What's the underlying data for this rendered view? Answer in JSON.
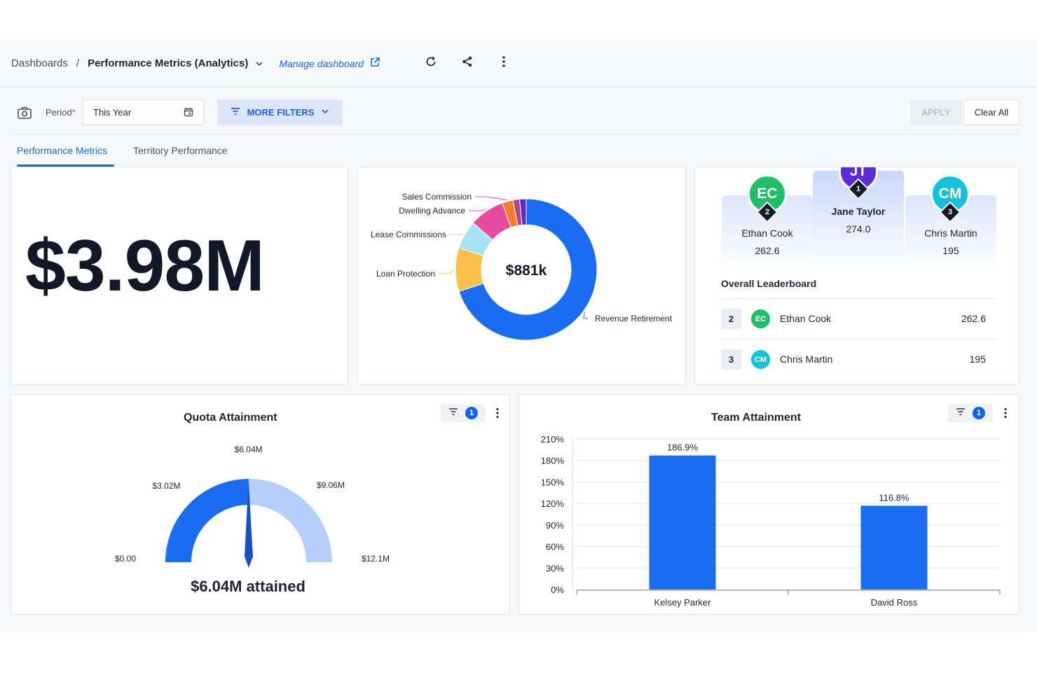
{
  "header": {
    "breadcrumb_root": "Dashboards",
    "breadcrumb_separator": "/",
    "breadcrumb_current": "Performance Metrics (Analytics)",
    "manage_label": "Manage dashboard",
    "icons": [
      "chevron-down-icon",
      "external-link-icon",
      "refresh-icon",
      "share-icon",
      "more-vertical-icon"
    ]
  },
  "filters": {
    "period_label": "Period",
    "required_mark": "*",
    "period_value": "This Year",
    "more_filters_label": "MORE FILTERS",
    "apply_label": "APPLY",
    "clear_label": "Clear All"
  },
  "tabs": [
    {
      "label": "Performance Metrics",
      "active": true
    },
    {
      "label": "Territory Performance",
      "active": false
    }
  ],
  "kpi": {
    "value": "$3.98M"
  },
  "donut": {
    "center_label": "$881k",
    "colors": {
      "revenue": "#1a6cf0",
      "loan": "#f9c04a",
      "lease": "#a6e3f5",
      "sales": "#e84ba0"
    }
  },
  "leaderboard": {
    "podium": [
      {
        "rank": "2",
        "initials": "EC",
        "name": "Ethan Cook",
        "score": "262.6",
        "color": "#1fbf6a"
      },
      {
        "rank": "1",
        "initials": "JT",
        "name": "Jane Taylor",
        "score": "274.0",
        "color": "#5b2bd6"
      },
      {
        "rank": "3",
        "initials": "CM",
        "name": "Chris Martin",
        "score": "195",
        "color": "#12c3d8"
      }
    ],
    "title": "Overall Leaderboard",
    "rows": [
      {
        "rank": "2",
        "initials": "EC",
        "name": "Ethan Cook",
        "score": "262.6",
        "color": "#1fbf6a"
      },
      {
        "rank": "3",
        "initials": "CM",
        "name": "Chris Martin",
        "score": "195",
        "color": "#12c3d8"
      }
    ]
  },
  "quota": {
    "title": "Quota Attainment",
    "filter_count": "1",
    "attained_label": "$6.04M attained",
    "colors": {
      "filled": "#1a6cf0",
      "remaining": "#b7cdfb"
    }
  },
  "team": {
    "title": "Team Attainment",
    "filter_count": "1"
  },
  "chart_data": [
    {
      "type": "pie",
      "variant": "donut",
      "center_label": "$881k",
      "slices": [
        {
          "label": "Revenue Retirement",
          "value": 70
        },
        {
          "label": "Loan Protection",
          "value": 10
        },
        {
          "label": "Lease Commissions",
          "value": 6.5
        },
        {
          "label": "Dwelling Advance",
          "value": 8
        },
        {
          "label": "Sales Commission",
          "value": 2.5
        },
        {
          "label": "",
          "value": 1.5
        },
        {
          "label": "",
          "value": 1.5
        }
      ]
    },
    {
      "type": "gauge",
      "title": "Quota Attainment",
      "min": 0,
      "max": 12.1,
      "value": 6.04,
      "tick_labels": [
        "$0.00",
        "$3.02M",
        "$6.04M",
        "$9.06M",
        "$12.1M"
      ],
      "tick_values": [
        0,
        3.02,
        6.04,
        9.06,
        12.1
      ],
      "caption": "$6.04M attained"
    },
    {
      "type": "bar",
      "title": "Team Attainment",
      "categories": [
        "Kelsey Parker",
        "David Ross"
      ],
      "values": [
        186.9,
        116.8
      ],
      "value_labels": [
        "186.9%",
        "116.8%"
      ],
      "ylim": [
        0,
        210
      ],
      "yticks": [
        0,
        30,
        60,
        90,
        120,
        150,
        180,
        210
      ],
      "ytick_labels": [
        "0%",
        "30%",
        "60%",
        "90%",
        "120%",
        "150%",
        "180%",
        "210%"
      ],
      "grid": true,
      "bar_color": "#1a6cf0"
    }
  ]
}
